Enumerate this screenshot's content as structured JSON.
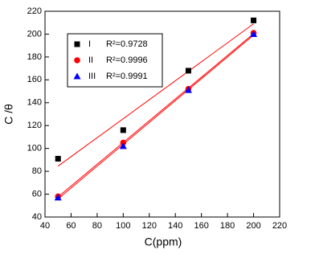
{
  "chart_data": {
    "type": "scatter",
    "x_label": "C(ppm)",
    "y_label": "C /θ",
    "x": [
      50,
      100,
      150,
      200
    ],
    "series": [
      {
        "name": "I",
        "fit_label": "R²=0.9728",
        "color": "#000000",
        "marker": "square",
        "values": [
          91,
          116,
          168,
          212
        ]
      },
      {
        "name": "II",
        "fit_label": "R²=0.9996",
        "color": "#ff0000",
        "marker": "circle",
        "values": [
          58,
          105,
          152,
          201
        ]
      },
      {
        "name": "III",
        "fit_label": "R²=0.9991",
        "color": "#0000ff",
        "marker": "triangle",
        "values": [
          57,
          102,
          151,
          200
        ]
      }
    ],
    "fit_color": "#ff0000",
    "xlim": [
      40,
      220
    ],
    "xticks": [
      40,
      60,
      80,
      100,
      120,
      140,
      160,
      180,
      200,
      220
    ],
    "ylim": [
      40,
      220
    ],
    "yticks": [
      40,
      60,
      80,
      100,
      120,
      140,
      160,
      180,
      200,
      220
    ]
  }
}
